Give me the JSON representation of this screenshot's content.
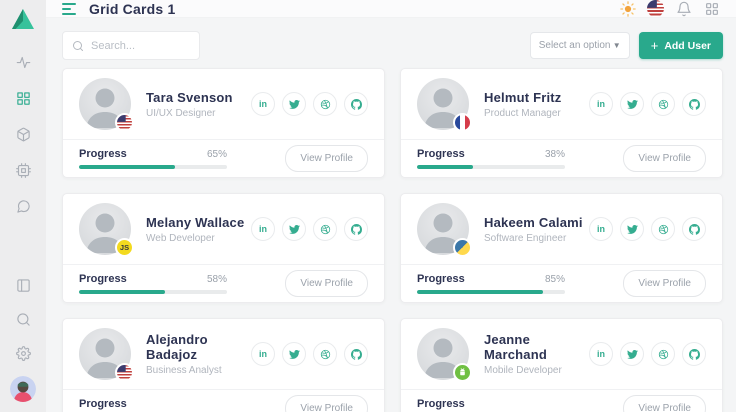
{
  "colors": {
    "accent": "#29a98c",
    "heading": "#2d3352",
    "muted": "#9aa1aa"
  },
  "sidebar": {
    "logo_icon": "triangle-logo",
    "nav_icons": [
      "activity",
      "grid-apps",
      "cube",
      "cpu",
      "chat-bubble"
    ],
    "active_icon": "grid-apps",
    "bottom_icons": [
      "layout-panel",
      "search",
      "settings-gear"
    ],
    "user_avatar": "profile-avatar"
  },
  "header": {
    "title": "Grid Cards 1",
    "icons": [
      "theme-sun",
      "language-us-flag",
      "notifications-bell",
      "apps-grid"
    ]
  },
  "toolbar": {
    "search_placeholder": "Search...",
    "select_value": "Select an option",
    "select_chevron": "▼",
    "add_user_plus": "+",
    "add_user_label": "Add User"
  },
  "social_icons": [
    "linkedin",
    "twitter",
    "dribbble",
    "github"
  ],
  "linkedin_glyph": "in",
  "cards": [
    {
      "name": "Tara Svenson",
      "role": "UI/UX Designer",
      "badge": "us-flag",
      "badge_text": "",
      "progress_label": "Progress",
      "progress": 65,
      "percent_text": "65%",
      "view_profile_label": "View Profile"
    },
    {
      "name": "Helmut Fritz",
      "role": "Product Manager",
      "badge": "fr-flag",
      "badge_text": "",
      "progress_label": "Progress",
      "progress": 38,
      "percent_text": "38%",
      "view_profile_label": "View Profile"
    },
    {
      "name": "Melany Wallace",
      "role": "Web Developer",
      "badge": "js",
      "badge_text": "JS",
      "progress_label": "Progress",
      "progress": 58,
      "percent_text": "58%",
      "view_profile_label": "View Profile"
    },
    {
      "name": "Hakeem Calami",
      "role": "Software Engineer",
      "badge": "python",
      "badge_text": "",
      "progress_label": "Progress",
      "progress": 85,
      "percent_text": "85%",
      "view_profile_label": "View Profile"
    },
    {
      "name": "Alejandro Badajoz",
      "role": "Business Analyst",
      "badge": "us-flag",
      "badge_text": "",
      "progress_label": "Progress",
      "view_profile_label": "View Profile"
    },
    {
      "name": "Jeanne Marchand",
      "role": "Mobile Developer",
      "badge": "android",
      "badge_text": "",
      "progress_label": "Progress",
      "view_profile_label": "View Profile"
    }
  ]
}
